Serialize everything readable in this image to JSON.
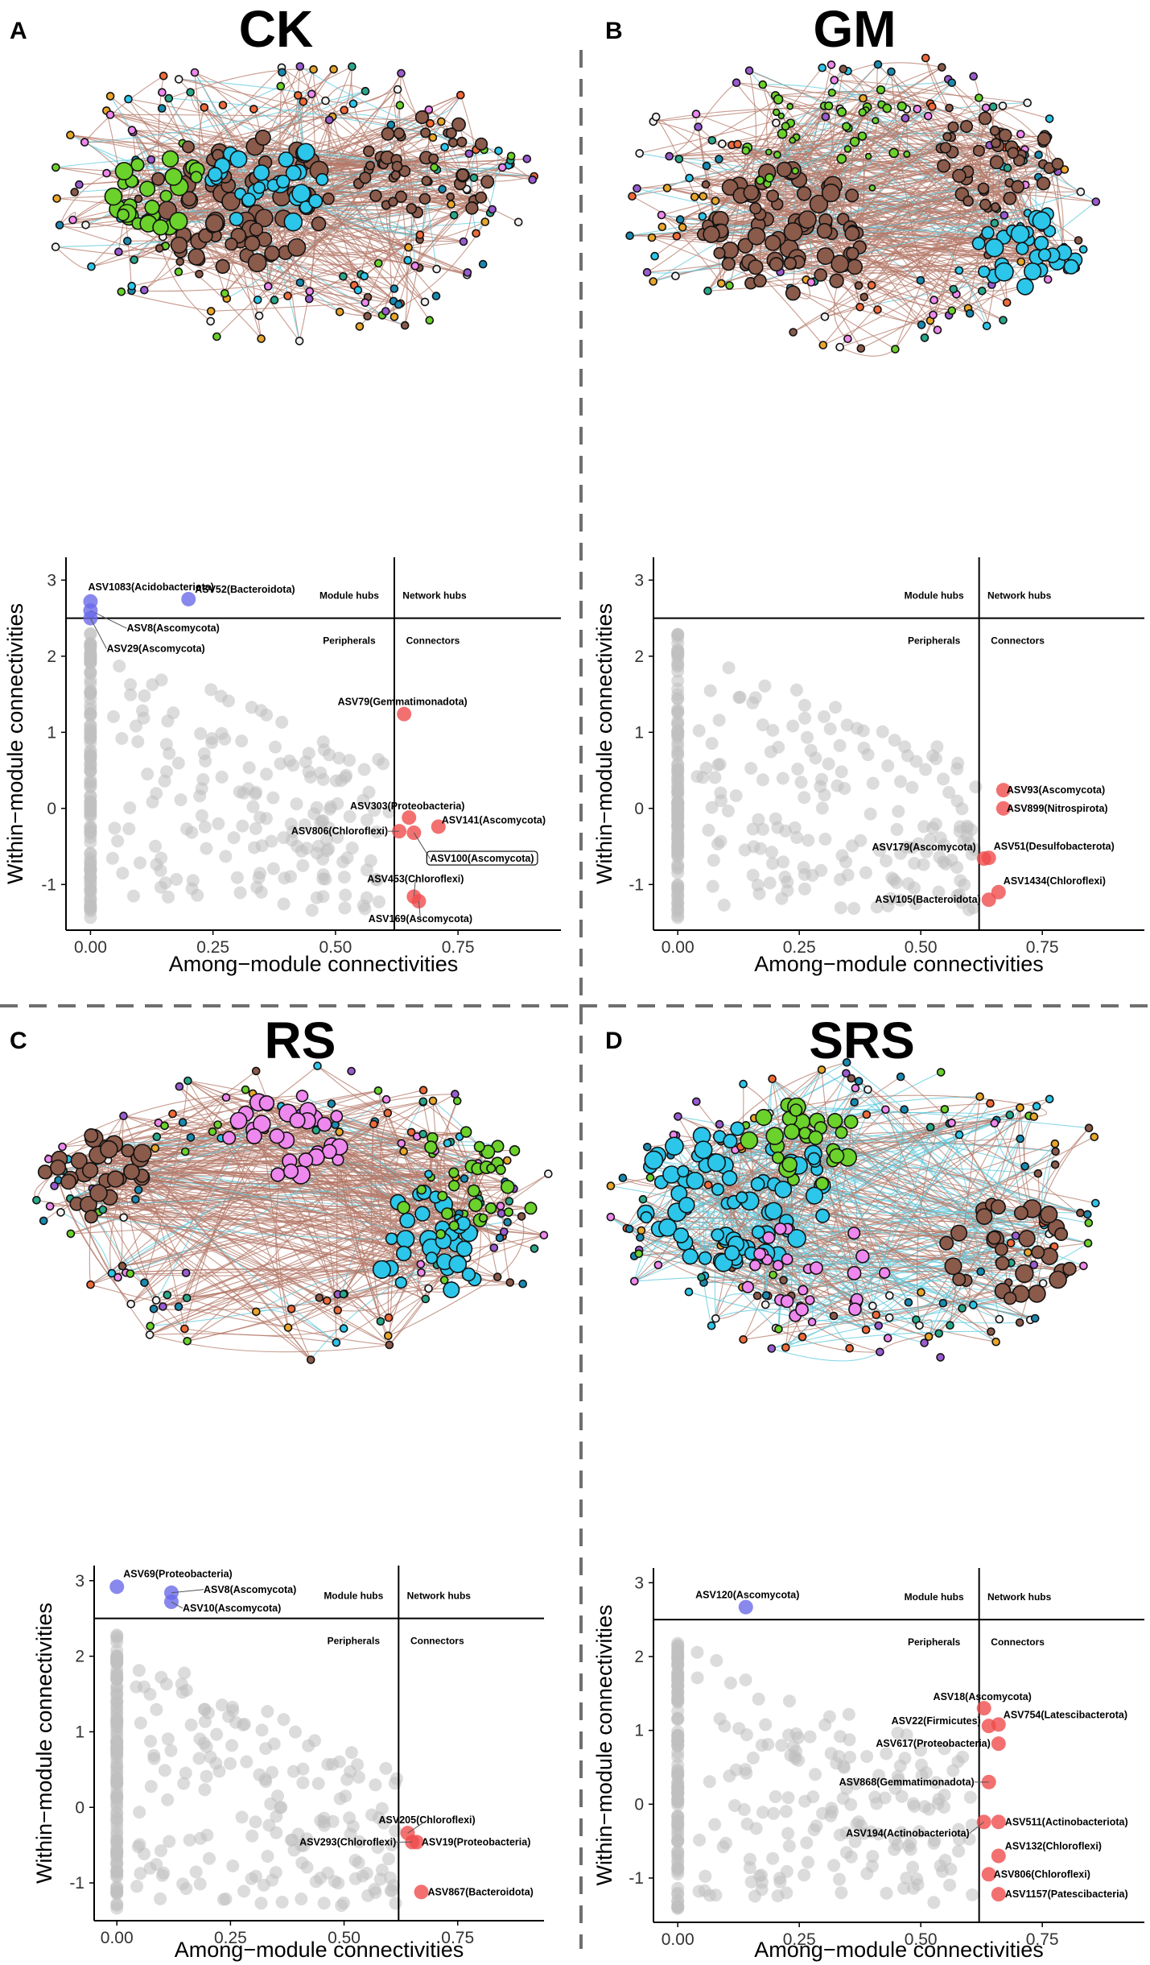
{
  "colors": {
    "grey_point": "#c0c0c0",
    "hub_point": "#6a6ae8",
    "connector_point": "#ef4c4c",
    "edge_pos": "#b47a6a",
    "edge_neg": "#5ec9dd",
    "divider": "#6f6f6f",
    "node_palette": [
      "#8a5a4a",
      "#2bc6ea",
      "#6bd12b",
      "#ee88ee",
      "#f06a3a",
      "#e8a62a",
      "#2aa88a",
      "#1a8ab0",
      "#f2f2f2",
      "#9a5bd0"
    ]
  },
  "panels": [
    {
      "letter": "A",
      "title": "CK",
      "network": {
        "legend_note": "",
        "modules": [
          {
            "color_index": 0,
            "count": 70,
            "size": "large"
          },
          {
            "color_index": 2,
            "count": 28,
            "size": "large"
          },
          {
            "color_index": 1,
            "count": 30,
            "size": "large"
          },
          {
            "color_index": 0,
            "count": 45,
            "size": "medium"
          }
        ]
      },
      "chart_data": {
        "type": "scatter",
        "xlabel": "Among−module connectivities",
        "ylabel": "Within−module connectivities",
        "xlim": [
          -0.05,
          0.96
        ],
        "ylim": [
          -1.6,
          3.3
        ],
        "xticks": [
          "0.00",
          "0.25",
          "0.50",
          "0.75"
        ],
        "yticks": [
          "-1",
          "0",
          "1",
          "2",
          "3"
        ],
        "zi_threshold": 2.5,
        "pi_threshold": 0.62,
        "quadrants": {
          "module_hubs": "Module hubs",
          "network_hubs": "Network hubs",
          "peripherals": "Peripherals",
          "connectors": "Connectors"
        },
        "highlighted": [
          {
            "name": "ASV1083(Acidobacteriota)",
            "x": 0.0,
            "y": 2.72,
            "type": "hub",
            "label_dx": -3,
            "label_dy": -18,
            "anchor": "start"
          },
          {
            "name": "ASV52(Bacteroidota)",
            "x": 0.2,
            "y": 2.75,
            "type": "hub",
            "label_dx": 8,
            "label_dy": -12,
            "anchor": "start"
          },
          {
            "name": "ASV8(Ascomycota)",
            "x": 0.0,
            "y": 2.6,
            "type": "hub",
            "label_dx": 45,
            "label_dy": 22,
            "anchor": "start"
          },
          {
            "name": "ASV29(Ascomycota)",
            "x": 0.0,
            "y": 2.5,
            "type": "hub",
            "label_dx": 20,
            "label_dy": 38,
            "anchor": "start"
          },
          {
            "name": "ASV79(Gemmatimonadota)",
            "x": 0.64,
            "y": 1.24,
            "type": "connector",
            "label_dx": -2,
            "label_dy": -15,
            "anchor": "middle"
          },
          {
            "name": "ASV303(Proteobacteria)",
            "x": 0.65,
            "y": -0.12,
            "type": "connector",
            "label_dx": -2,
            "label_dy": -14,
            "anchor": "middle"
          },
          {
            "name": "ASV141(Ascomycota)",
            "x": 0.71,
            "y": -0.24,
            "type": "connector",
            "label_dx": 4,
            "label_dy": -8,
            "anchor": "start"
          },
          {
            "name": "ASV806(Chloroflexi)",
            "x": 0.63,
            "y": -0.3,
            "type": "connector",
            "label_dx": -14,
            "label_dy": 0,
            "anchor": "end"
          },
          {
            "name": "ASV100(Ascomycota)",
            "x": 0.66,
            "y": -0.32,
            "type": "connector",
            "label_dx": 20,
            "label_dy": 32,
            "anchor": "start",
            "boxed": true
          },
          {
            "name": "ASV453(Chloroflexi)",
            "x": 0.66,
            "y": -1.16,
            "type": "connector",
            "label_dx": 2,
            "label_dy": -22,
            "anchor": "middle"
          },
          {
            "name": "ASV169(Ascomycota)",
            "x": 0.67,
            "y": -1.22,
            "type": "connector",
            "label_dx": 2,
            "label_dy": 22,
            "anchor": "middle"
          }
        ]
      }
    },
    {
      "letter": "B",
      "title": "GM",
      "network": {
        "legend_note": "",
        "modules": [
          {
            "color_index": 0,
            "count": 75,
            "size": "large"
          },
          {
            "color_index": 1,
            "count": 30,
            "size": "large"
          },
          {
            "color_index": 2,
            "count": 40,
            "size": "small"
          },
          {
            "color_index": 0,
            "count": 40,
            "size": "medium"
          }
        ]
      },
      "chart_data": {
        "type": "scatter",
        "xlabel": "Among−module connectivities",
        "ylabel": "Within−module connectivities",
        "xlim": [
          -0.05,
          0.96
        ],
        "ylim": [
          -1.6,
          3.3
        ],
        "xticks": [
          "0.00",
          "0.25",
          "0.50",
          "0.75"
        ],
        "yticks": [
          "-1",
          "0",
          "1",
          "2",
          "3"
        ],
        "zi_threshold": 2.5,
        "pi_threshold": 0.62,
        "quadrants": {
          "module_hubs": "Module hubs",
          "network_hubs": "Network hubs",
          "peripherals": "Peripherals",
          "connectors": "Connectors"
        },
        "highlighted": [
          {
            "name": "ASV93(Ascomycota)",
            "x": 0.67,
            "y": 0.24,
            "type": "connector",
            "label_dx": 4,
            "label_dy": 0,
            "anchor": "start"
          },
          {
            "name": "ASV899(Nitrospirota)",
            "x": 0.67,
            "y": 0.0,
            "type": "connector",
            "label_dx": 4,
            "label_dy": 0,
            "anchor": "start"
          },
          {
            "name": "ASV51(Desulfobacterota)",
            "x": 0.64,
            "y": -0.65,
            "type": "connector",
            "label_dx": 6,
            "label_dy": -14,
            "anchor": "start"
          },
          {
            "name": "ASV179(Ascomycota)",
            "x": 0.63,
            "y": -0.66,
            "type": "connector",
            "label_dx": -10,
            "label_dy": -14,
            "anchor": "end"
          },
          {
            "name": "ASV1434(Chloroflexi)",
            "x": 0.66,
            "y": -1.1,
            "type": "connector",
            "label_dx": 6,
            "label_dy": -14,
            "anchor": "start"
          },
          {
            "name": "ASV105(Bacteroidota)",
            "x": 0.64,
            "y": -1.2,
            "type": "connector",
            "label_dx": -10,
            "label_dy": 0,
            "anchor": "end"
          }
        ]
      }
    },
    {
      "letter": "C",
      "title": "RS",
      "network": {
        "legend_note": "",
        "modules": [
          {
            "color_index": 3,
            "count": 30,
            "size": "large"
          },
          {
            "color_index": 0,
            "count": 30,
            "size": "large"
          },
          {
            "color_index": 1,
            "count": 30,
            "size": "large"
          },
          {
            "color_index": 2,
            "count": 30,
            "size": "medium"
          }
        ]
      },
      "chart_data": {
        "type": "scatter",
        "xlabel": "Among−module connectivities",
        "ylabel": "Within−module connectivities",
        "xlim": [
          -0.05,
          0.94
        ],
        "ylim": [
          -1.5,
          3.2
        ],
        "xticks": [
          "0.00",
          "0.25",
          "0.50",
          "0.75"
        ],
        "yticks": [
          "-1",
          "0",
          "1",
          "2",
          "3"
        ],
        "zi_threshold": 2.5,
        "pi_threshold": 0.62,
        "quadrants": {
          "module_hubs": "Module hubs",
          "network_hubs": "Network hubs",
          "peripherals": "Peripherals",
          "connectors": "Connectors"
        },
        "highlighted": [
          {
            "name": "ASV69(Proteobacteria)",
            "x": 0.0,
            "y": 2.92,
            "type": "hub",
            "label_dx": 8,
            "label_dy": -16,
            "anchor": "start"
          },
          {
            "name": "ASV8(Ascomycota)",
            "x": 0.12,
            "y": 2.84,
            "type": "hub",
            "label_dx": 40,
            "label_dy": -4,
            "anchor": "start"
          },
          {
            "name": "ASV10(Ascomycota)",
            "x": 0.12,
            "y": 2.72,
            "type": "hub",
            "label_dx": 14,
            "label_dy": 8,
            "anchor": "start"
          },
          {
            "name": "ASV205(Chloroflexi)",
            "x": 0.64,
            "y": -0.34,
            "type": "connector",
            "label_dx": 24,
            "label_dy": -16,
            "anchor": "middle"
          },
          {
            "name": "ASV19(Proteobacteria)",
            "x": 0.66,
            "y": -0.46,
            "type": "connector",
            "label_dx": 6,
            "label_dy": 0,
            "anchor": "start"
          },
          {
            "name": "ASV293(Chloroflexi)",
            "x": 0.65,
            "y": -0.46,
            "type": "connector",
            "label_dx": -20,
            "label_dy": 0,
            "anchor": "end"
          },
          {
            "name": "ASV867(Bacteroidota)",
            "x": 0.67,
            "y": -1.12,
            "type": "connector",
            "label_dx": 8,
            "label_dy": 0,
            "anchor": "start"
          }
        ]
      }
    },
    {
      "letter": "D",
      "title": "SRS",
      "network": {
        "legend_note": "",
        "modules": [
          {
            "color_index": 1,
            "count": 75,
            "size": "large"
          },
          {
            "color_index": 2,
            "count": 28,
            "size": "large"
          },
          {
            "color_index": 0,
            "count": 30,
            "size": "large"
          },
          {
            "color_index": 3,
            "count": 25,
            "size": "medium"
          }
        ]
      },
      "chart_data": {
        "type": "scatter",
        "xlabel": "Among−module connectivities",
        "ylabel": "Within−module connectivities",
        "xlim": [
          -0.05,
          0.96
        ],
        "ylim": [
          -1.6,
          3.2
        ],
        "xticks": [
          "0.00",
          "0.25",
          "0.50",
          "0.75"
        ],
        "yticks": [
          "-1",
          "0",
          "1",
          "2",
          "3"
        ],
        "zi_threshold": 2.5,
        "pi_threshold": 0.62,
        "quadrants": {
          "module_hubs": "Module hubs",
          "network_hubs": "Network hubs",
          "peripherals": "Peripherals",
          "connectors": "Connectors"
        },
        "highlighted": [
          {
            "name": "ASV120(Ascomycota)",
            "x": 0.14,
            "y": 2.67,
            "type": "hub",
            "label_dx": 2,
            "label_dy": -15,
            "anchor": "middle"
          },
          {
            "name": "ASV18(Ascomycota)",
            "x": 0.63,
            "y": 1.3,
            "type": "connector",
            "label_dx": -2,
            "label_dy": -14,
            "anchor": "middle"
          },
          {
            "name": "ASV22(Firmicutes)",
            "x": 0.64,
            "y": 1.06,
            "type": "connector",
            "label_dx": -10,
            "label_dy": -6,
            "anchor": "end"
          },
          {
            "name": "ASV754(Latescibacterota)",
            "x": 0.66,
            "y": 1.08,
            "type": "connector",
            "label_dx": 6,
            "label_dy": -12,
            "anchor": "start"
          },
          {
            "name": "ASV617(Proteobacteria)",
            "x": 0.66,
            "y": 0.82,
            "type": "connector",
            "label_dx": -10,
            "label_dy": 0,
            "anchor": "end"
          },
          {
            "name": "ASV868(Gemmatimonadota)",
            "x": 0.64,
            "y": 0.3,
            "type": "connector",
            "label_dx": -18,
            "label_dy": 0,
            "anchor": "end"
          },
          {
            "name": "ASV511(Actinobacteriota)",
            "x": 0.66,
            "y": -0.24,
            "type": "connector",
            "label_dx": 8,
            "label_dy": 0,
            "anchor": "start"
          },
          {
            "name": "ASV194(Actinobacteriota)",
            "x": 0.63,
            "y": -0.24,
            "type": "connector",
            "label_dx": -18,
            "label_dy": 14,
            "anchor": "end"
          },
          {
            "name": "ASV132(Chloroflexi)",
            "x": 0.66,
            "y": -0.7,
            "type": "connector",
            "label_dx": 8,
            "label_dy": -12,
            "anchor": "start"
          },
          {
            "name": "ASV806(Chloroflexi)",
            "x": 0.64,
            "y": -0.95,
            "type": "connector",
            "label_dx": 6,
            "label_dy": 0,
            "anchor": "start"
          },
          {
            "name": "ASV1157(Patescibacteria)",
            "x": 0.66,
            "y": -1.22,
            "type": "connector",
            "label_dx": 8,
            "label_dy": 0,
            "anchor": "start"
          }
        ]
      }
    }
  ]
}
